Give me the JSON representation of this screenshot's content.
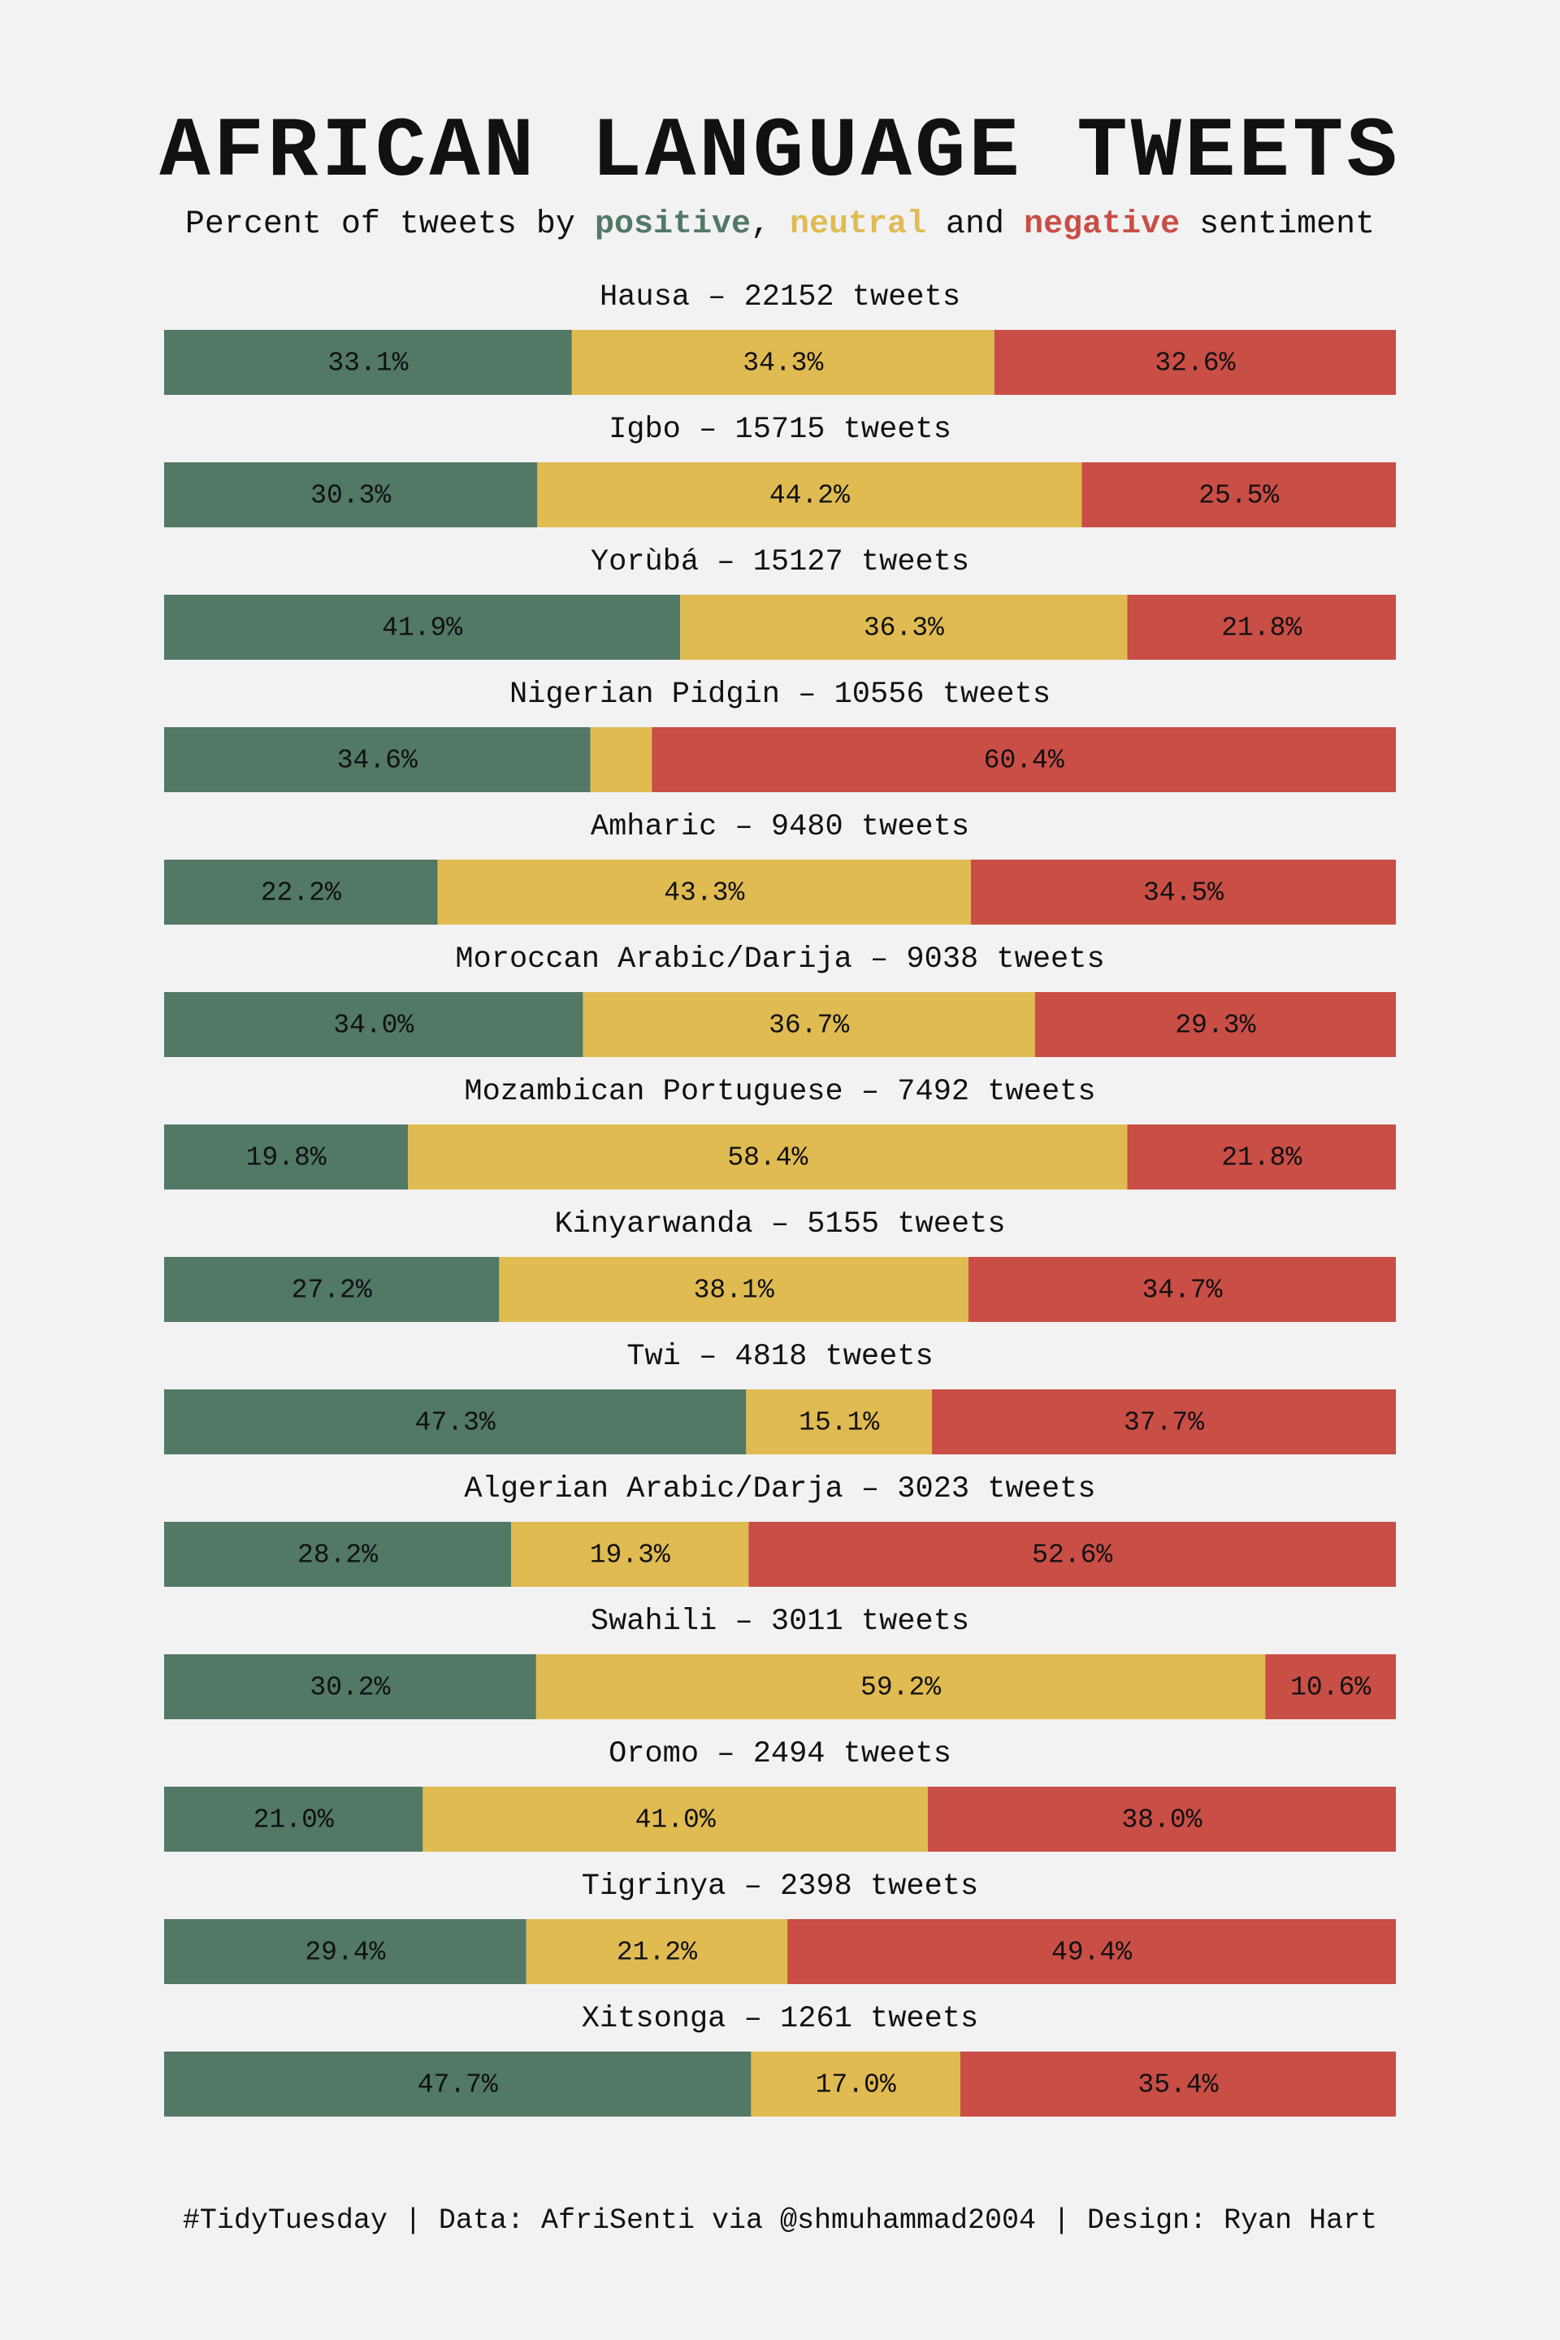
{
  "title": "AFRICAN LANGUAGE TWEETS",
  "subtitle": {
    "prefix": "Percent of tweets by ",
    "positive": "positive",
    "sep1": ", ",
    "neutral": "neutral",
    "sep2": " and ",
    "negative": "negative",
    "suffix": " sentiment"
  },
  "caption": "#TidyTuesday | Data: AfriSenti via @shmuhammad2004 | Design: Ryan Hart",
  "colors": {
    "positive": "#527866",
    "neutral": "#dfbb52",
    "negative": "#c94e46",
    "background": "#f2f2f2"
  },
  "chart_data": {
    "type": "bar",
    "orientation": "horizontal-stacked-100",
    "count_suffix": "tweets",
    "series": [
      {
        "key": "positive"
      },
      {
        "key": "neutral"
      },
      {
        "key": "negative"
      }
    ],
    "rows": [
      {
        "language": "Hausa",
        "tweets": 22152,
        "values": [
          33.1,
          34.3,
          32.6
        ]
      },
      {
        "language": "Igbo",
        "tweets": 15715,
        "values": [
          30.3,
          44.2,
          25.5
        ]
      },
      {
        "language": "Yorùbá",
        "tweets": 15127,
        "values": [
          41.9,
          36.3,
          21.8
        ]
      },
      {
        "language": "Nigerian Pidgin",
        "tweets": 10556,
        "values": [
          34.6,
          5.0,
          60.4
        ],
        "hide_labels": [
          false,
          true,
          false
        ]
      },
      {
        "language": "Amharic",
        "tweets": 9480,
        "values": [
          22.2,
          43.3,
          34.5
        ]
      },
      {
        "language": "Moroccan Arabic/Darija",
        "tweets": 9038,
        "values": [
          34.0,
          36.7,
          29.3
        ]
      },
      {
        "language": "Mozambican Portuguese",
        "tweets": 7492,
        "values": [
          19.8,
          58.4,
          21.8
        ]
      },
      {
        "language": "Kinyarwanda",
        "tweets": 5155,
        "values": [
          27.2,
          38.1,
          34.7
        ]
      },
      {
        "language": "Twi",
        "tweets": 4818,
        "values": [
          47.3,
          15.1,
          37.7
        ]
      },
      {
        "language": "Algerian Arabic/Darja",
        "tweets": 3023,
        "values": [
          28.2,
          19.3,
          52.6
        ]
      },
      {
        "language": "Swahili",
        "tweets": 3011,
        "values": [
          30.2,
          59.2,
          10.6
        ]
      },
      {
        "language": "Oromo",
        "tweets": 2494,
        "values": [
          21.0,
          41.0,
          38.0
        ]
      },
      {
        "language": "Tigrinya",
        "tweets": 2398,
        "values": [
          29.4,
          21.2,
          49.4
        ]
      },
      {
        "language": "Xitsonga",
        "tweets": 1261,
        "values": [
          47.7,
          17.0,
          35.4
        ]
      }
    ]
  }
}
